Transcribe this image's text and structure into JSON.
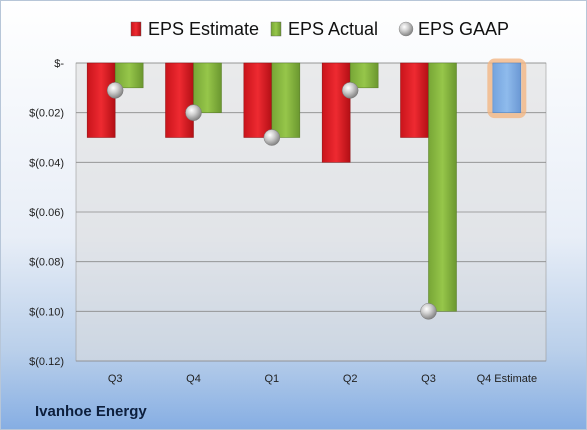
{
  "company": "Ivanhoe Energy",
  "chart_data": {
    "type": "bar",
    "categories": [
      "Q3",
      "Q4",
      "Q1",
      "Q2",
      "Q3",
      "Q4 Estimate"
    ],
    "series": [
      {
        "name": "EPS Estimate",
        "color": "#e8232b",
        "values": [
          -0.03,
          -0.03,
          -0.03,
          -0.04,
          -0.03,
          null
        ]
      },
      {
        "name": "EPS Actual",
        "color": "#8cbc3f",
        "values": [
          -0.01,
          -0.02,
          -0.03,
          -0.01,
          -0.1,
          null
        ]
      },
      {
        "name": "EPS GAAP",
        "color": "#b8b8b8",
        "values": [
          -0.011,
          -0.02,
          -0.03,
          -0.011,
          -0.1,
          null
        ],
        "marker": "sphere"
      }
    ],
    "forecast": {
      "category": "Q4 Estimate",
      "value": -0.02,
      "color": "#84b2e6",
      "glow": "#f3b784"
    },
    "yticks": [
      0,
      -0.02,
      -0.04,
      -0.06,
      -0.08,
      -0.1,
      -0.12
    ],
    "ytick_labels": [
      "$-",
      "$(0.02)",
      "$(0.04)",
      "$(0.06)",
      "$(0.08)",
      "$(0.10)",
      "$(0.12)"
    ],
    "ylim": [
      -0.12,
      0
    ],
    "grid": true,
    "legend": "top"
  }
}
